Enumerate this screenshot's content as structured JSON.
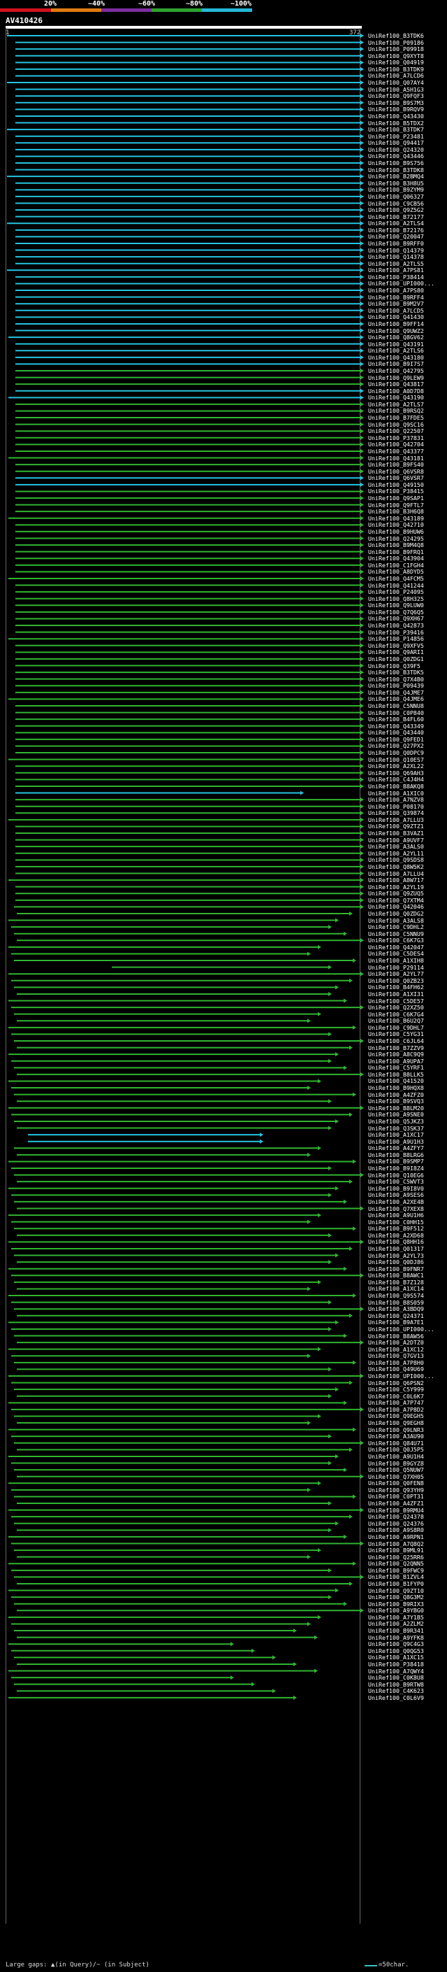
{
  "legend": {
    "labels": [
      "20%",
      "~40%",
      "~60%",
      "~80%",
      "~100%"
    ],
    "colors": [
      "#d0121f",
      "#e07b10",
      "#7d2ea0",
      "#2fa32f",
      "#25b8d6"
    ]
  },
  "query": {
    "id": "AV410426",
    "start": "1",
    "end": "372"
  },
  "footer": {
    "text": "Large gaps: ▲(in Query)/~ (in Subject)",
    "scale": "=50char."
  },
  "hits": [
    "UniRef100_B3TDK6",
    "UniRef100_P09186",
    "UniRef100_P09918",
    "UniRef100_Q9XYT8",
    "UniRef100_Q04919",
    "UniRef100_B3TDK9",
    "UniRef100_A7LCD6",
    "UniRef100_Q07AY4",
    "UniRef100_A5H1G3",
    "UniRef100_Q9FQF3",
    "UniRef100_B9S7M3",
    "UniRef100_B9RQV9",
    "UniRef100_Q43430",
    "UniRef100_B5TDX2",
    "UniRef100_B3TDK7",
    "UniRef100_P23481",
    "UniRef100_Q94417",
    "UniRef100_Q24320",
    "UniRef100_Q43446",
    "UniRef100_B9S756",
    "UniRef100_B3TDK8",
    "UniRef100_B2BMQ4",
    "UniRef100_B3H8U5",
    "UniRef100_B9ZYM9",
    "UniRef100_Q06327",
    "UniRef100_C9CB56",
    "UniRef100_Q9Z5G2",
    "UniRef100_B72177",
    "UniRef100_A2TLS4",
    "UniRef100_B72176",
    "UniRef100_Q20047",
    "UniRef100_B9RFF0",
    "UniRef100_Q14379",
    "UniRef100_Q14378",
    "UniRef100_A2TLS5",
    "UniRef100_A7PS81",
    "UniRef100_P38414",
    "UniRef100_UPI000...",
    "UniRef100_A7PS80",
    "UniRef100_B9RFF4",
    "UniRef100_B9M2V7",
    "UniRef100_A7LCD5",
    "UniRef100_Q41430",
    "UniRef100_B9FF14",
    "UniRef100_Q9UWZ2",
    "UniRef100_Q8GV62",
    "UniRef100_Q43191",
    "UniRef100_A2TLS6",
    "UniRef100_Q43180",
    "UniRef100_B9I7S7",
    "UniRef100_Q42795",
    "UniRef100_Q9LEW9",
    "UniRef100_Q43817",
    "UniRef100_A0D7D8",
    "UniRef100_Q43190",
    "UniRef100_A2TLS7",
    "UniRef100_B9RSQ2",
    "UniRef100_B7FDE5",
    "UniRef100_Q9SC16",
    "UniRef100_Q22507",
    "UniRef100_P37831",
    "UniRef100_Q42704",
    "UniRef100_Q43377",
    "UniRef100_Q43181",
    "UniRef100_B9FS40",
    "UniRef100_Q6VSR8",
    "UniRef100_Q6VSR7",
    "UniRef100_Q49150",
    "UniRef100_P38415",
    "UniRef100_Q9SAP1",
    "UniRef100_Q9FTL7",
    "UniRef100_B3H6Q8",
    "UniRef100_Q43189",
    "UniRef100_Q42710",
    "UniRef100_B9HUW6",
    "UniRef100_Q24295",
    "UniRef100_B9M4Q8",
    "UniRef100_B9FRQ1",
    "UniRef100_Q43904",
    "UniRef100_C1FGH4",
    "UniRef100_A8DYD5",
    "UniRef100_Q4FCM5",
    "UniRef100_Q41244",
    "UniRef100_P24095",
    "UniRef100_Q8H325",
    "UniRef100_Q9LUW0",
    "UniRef100_Q7Q6Q5",
    "UniRef100_Q9XH67",
    "UniRef100_Q42873",
    "UniRef100_P39416",
    "UniRef100_P14856",
    "UniRef100_Q9XFV5",
    "UniRef100_Q9ARI1",
    "UniRef100_Q0ZDG1",
    "UniRef100_Q39F5",
    "UniRef100_B3TDK5",
    "UniRef100_Q7X4B0",
    "UniRef100_P09439",
    "UniRef100_Q4JME7",
    "UniRef100_Q4JME6",
    "UniRef100_C5NNU8",
    "UniRef100_C0P840",
    "UniRef100_B4FL60",
    "UniRef100_Q43349",
    "UniRef100_Q43440",
    "UniRef100_Q9FED1",
    "UniRef100_Q27PX2",
    "UniRef100_Q0DPC9",
    "UniRef100_Q10ES7",
    "UniRef100_A2XL22",
    "UniRef100_Q69AH3",
    "UniRef100_C4J4H4",
    "UniRef100_B8AKQ8",
    "UniRef100_A1XIC0",
    "UniRef100_A7NZV8",
    "UniRef100_P08170",
    "UniRef100_Q39874",
    "UniRef100_A7LLU3",
    "UniRef100_Q9ZTZ1",
    "UniRef100_B3VAZ1",
    "UniRef100_A9UVF7",
    "UniRef100_A3ALS0",
    "UniRef100_A2YL11",
    "UniRef100_Q9SDS8",
    "UniRef100_Q8W5K2",
    "UniRef100_A7LLU4",
    "UniRef100_A8W717",
    "UniRef100_A2YL19",
    "UniRef100_Q9ZUQ5",
    "UniRef100_Q7XTM4",
    "UniRef100_Q42046",
    "UniRef100_Q0ZDG2",
    "UniRef100_A3ALS8",
    "UniRef100_C9DHL2",
    "UniRef100_C5NNU9",
    "UniRef100_C6K7G3",
    "UniRef100_Q42047",
    "UniRef100_C5DES4",
    "UniRef100_A1XIH8",
    "UniRef100_P29114",
    "UniRef100_A2YL77",
    "UniRef100_Q0ZB23",
    "UniRef100_B4FH62",
    "UniRef100_A1XI31",
    "UniRef100_C5DE57",
    "UniRef100_Q2XZ50",
    "UniRef100_C6K7G4",
    "UniRef100_B6U2Q7",
    "UniRef100_C9DHL7",
    "UniRef100_C5YG31",
    "UniRef100_C6JL64",
    "UniRef100_B7ZZV9",
    "UniRef100_A8C9Q9",
    "UniRef100_A9UPA7",
    "UniRef100_C5YRF1",
    "UniRef100_B8LLK5",
    "UniRef100_Q41520",
    "UniRef100_B9HQX8",
    "UniRef100_A4ZFZ0",
    "UniRef100_B9SVQ3",
    "UniRef100_B8LM20",
    "UniRef100_A9SNE0",
    "UniRef100_Q5JKZ3",
    "UniRef100_Q3SK37",
    "UniRef100_A1XC17",
    "UniRef100_A9U1H3",
    "UniRef100_A4ZFY7",
    "UniRef100_B8LRG6",
    "UniRef100_B9SMP7",
    "UniRef100_B9I8Z4",
    "UniRef100_Q10EG6",
    "UniRef100_C5WVT3",
    "UniRef100_B9I8V0",
    "UniRef100_A9SES6",
    "UniRef100_A2XE4B",
    "UniRef100_Q7XEX8",
    "UniRef100_A9U1H6",
    "UniRef100_C0HH15",
    "UniRef100_B9F512",
    "UniRef100_A2XD68",
    "UniRef100_Q8HH16",
    "UniRef100_Q01317",
    "UniRef100_A2YL73",
    "UniRef100_Q0DJ86",
    "UniRef100_B9FNR7",
    "UniRef100_B8AWC1",
    "UniRef100_B7Z128",
    "UniRef100_A1XC14",
    "UniRef100_Q9S574",
    "UniRef100_B8S059",
    "UniRef100_A3BDQ9",
    "UniRef100_Q24371",
    "UniRef100_B9A7E1",
    "UniRef100_UPI000...",
    "UniRef100_B8AW56",
    "UniRef100_A2DTZ0",
    "UniRef100_A1XC12",
    "UniRef100_Q7GV13",
    "UniRef100_A7P8H0",
    "UniRef100_Q49U69",
    "UniRef100_UPI000...",
    "UniRef100_Q6PSN2",
    "UniRef100_C5Y999",
    "UniRef100_C0L6K7",
    "UniRef100_A7P747",
    "UniRef100_A7P8D2",
    "UniRef100_Q9EGH5",
    "UniRef100_Q9EGH8",
    "UniRef100_Q9LNR3",
    "UniRef100_A3AU90",
    "UniRef100_Q84U71",
    "UniRef100_Q0J5P5",
    "UniRef100_A9U1H4",
    "UniRef100_B9GYZ8",
    "UniRef100_Q5NUW7",
    "UniRef100_Q7XH05",
    "UniRef100_Q0FEN8",
    "UniRef100_Q93YH9",
    "UniRef100_C0PT31",
    "UniRef100_A4ZFZ1",
    "UniRef100_B9RMU4",
    "UniRef100_Q24378",
    "UniRef100_Q24376",
    "UniRef100_A9S8R0",
    "UniRef100_A9RPN1",
    "UniRef100_A7Q8Q2",
    "UniRef100_B9ML91",
    "UniRef100_Q25RR6",
    "UniRef100_Q2QNN5",
    "UniRef100_B9FWC9",
    "UniRef100_B1ZVL4",
    "UniRef100_B1FYP0",
    "UniRef100_Q9ZT10",
    "UniRef100_Q8G3M2",
    "UniRef100_B9RIX3",
    "UniRef100_A9YBG0",
    "UniRef100_A7Y1B5",
    "UniRef100_A2ZLM2",
    "UniRef100_B9R341",
    "UniRef100_A9YFK8",
    "UniRef100_Q9C4G3",
    "UniRef100_Q0QG53",
    "UniRef100_A1XC15",
    "UniRef100_P38418",
    "UniRef100_A7QWY4",
    "UniRef100_C0K8U8",
    "UniRef100_B9RTW8",
    "UniRef100_C4K623",
    "UniRef100_C0L6V9"
  ]
}
